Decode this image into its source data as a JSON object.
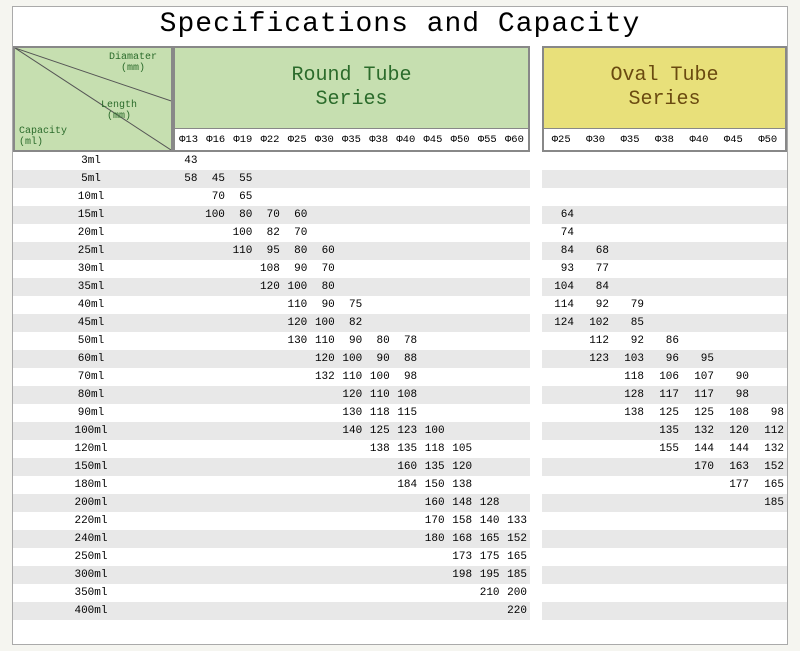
{
  "title": "Specifications and Capacity",
  "corner": {
    "diameter": "Diamater\n(mm)",
    "length": "Length\n(mm)",
    "capacity": "Capacity\n(ml)"
  },
  "round": {
    "title": "Round Tube\nSeries",
    "bg": "#c6dfb0",
    "fg": "#2b6b2b",
    "diameters": [
      "Φ13",
      "Φ16",
      "Φ19",
      "Φ22",
      "Φ25",
      "Φ30",
      "Φ35",
      "Φ38",
      "Φ40",
      "Φ45",
      "Φ50",
      "Φ55",
      "Φ60"
    ]
  },
  "oval": {
    "title": "Oval Tube\nSeries",
    "bg": "#e8e07a",
    "fg": "#6a4a10",
    "diameters": [
      "Φ25",
      "Φ30",
      "Φ35",
      "Φ38",
      "Φ40",
      "Φ45",
      "Φ50"
    ]
  },
  "rows": [
    {
      "cap": "3ml",
      "r": [
        43,
        "",
        "",
        "",
        "",
        "",
        "",
        "",
        "",
        "",
        "",
        "",
        ""
      ],
      "o": [
        "",
        "",
        "",
        "",
        "",
        "",
        ""
      ]
    },
    {
      "cap": "5ml",
      "r": [
        58,
        45,
        55,
        "",
        "",
        "",
        "",
        "",
        "",
        "",
        "",
        "",
        ""
      ],
      "o": [
        "",
        "",
        "",
        "",
        "",
        "",
        ""
      ]
    },
    {
      "cap": "10ml",
      "r": [
        "",
        70,
        65,
        "",
        "",
        "",
        "",
        "",
        "",
        "",
        "",
        "",
        ""
      ],
      "o": [
        "",
        "",
        "",
        "",
        "",
        "",
        ""
      ]
    },
    {
      "cap": "15ml",
      "r": [
        "",
        100,
        80,
        70,
        60,
        "",
        "",
        "",
        "",
        "",
        "",
        "",
        ""
      ],
      "o": [
        64,
        "",
        "",
        "",
        "",
        "",
        ""
      ]
    },
    {
      "cap": "20ml",
      "r": [
        "",
        "",
        100,
        82,
        70,
        "",
        "",
        "",
        "",
        "",
        "",
        "",
        ""
      ],
      "o": [
        74,
        "",
        "",
        "",
        "",
        "",
        ""
      ]
    },
    {
      "cap": "25ml",
      "r": [
        "",
        "",
        110,
        95,
        80,
        60,
        "",
        "",
        "",
        "",
        "",
        "",
        ""
      ],
      "o": [
        84,
        68,
        "",
        "",
        "",
        "",
        ""
      ]
    },
    {
      "cap": "30ml",
      "r": [
        "",
        "",
        "",
        108,
        90,
        70,
        "",
        "",
        "",
        "",
        "",
        "",
        ""
      ],
      "o": [
        93,
        77,
        "",
        "",
        "",
        "",
        ""
      ]
    },
    {
      "cap": "35ml",
      "r": [
        "",
        "",
        "",
        120,
        100,
        80,
        "",
        "",
        "",
        "",
        "",
        "",
        ""
      ],
      "o": [
        104,
        84,
        "",
        "",
        "",
        "",
        ""
      ]
    },
    {
      "cap": "40ml",
      "r": [
        "",
        "",
        "",
        "",
        110,
        90,
        75,
        "",
        "",
        "",
        "",
        "",
        ""
      ],
      "o": [
        114,
        92,
        79,
        "",
        "",
        "",
        ""
      ]
    },
    {
      "cap": "45ml",
      "r": [
        "",
        "",
        "",
        "",
        120,
        100,
        82,
        "",
        "",
        "",
        "",
        "",
        ""
      ],
      "o": [
        124,
        102,
        85,
        "",
        "",
        "",
        ""
      ]
    },
    {
      "cap": "50ml",
      "r": [
        "",
        "",
        "",
        "",
        130,
        110,
        90,
        80,
        78,
        "",
        "",
        "",
        ""
      ],
      "o": [
        "",
        112,
        92,
        86,
        "",
        "",
        ""
      ]
    },
    {
      "cap": "60ml",
      "r": [
        "",
        "",
        "",
        "",
        "",
        120,
        100,
        90,
        88,
        "",
        "",
        "",
        ""
      ],
      "o": [
        "",
        123,
        103,
        96,
        95,
        "",
        ""
      ]
    },
    {
      "cap": "70ml",
      "r": [
        "",
        "",
        "",
        "",
        "",
        132,
        110,
        100,
        98,
        "",
        "",
        "",
        ""
      ],
      "o": [
        "",
        "",
        118,
        106,
        107,
        90,
        ""
      ]
    },
    {
      "cap": "80ml",
      "r": [
        "",
        "",
        "",
        "",
        "",
        "",
        120,
        110,
        108,
        "",
        "",
        "",
        ""
      ],
      "o": [
        "",
        "",
        128,
        117,
        117,
        98,
        ""
      ]
    },
    {
      "cap": "90ml",
      "r": [
        "",
        "",
        "",
        "",
        "",
        "",
        130,
        118,
        115,
        "",
        "",
        "",
        ""
      ],
      "o": [
        "",
        "",
        138,
        125,
        125,
        108,
        98
      ]
    },
    {
      "cap": "100ml",
      "r": [
        "",
        "",
        "",
        "",
        "",
        "",
        140,
        125,
        123,
        100,
        "",
        "",
        ""
      ],
      "o": [
        "",
        "",
        "",
        135,
        132,
        120,
        112
      ]
    },
    {
      "cap": "120ml",
      "r": [
        "",
        "",
        "",
        "",
        "",
        "",
        "",
        138,
        135,
        118,
        105,
        "",
        ""
      ],
      "o": [
        "",
        "",
        "",
        155,
        144,
        144,
        132
      ]
    },
    {
      "cap": "150ml",
      "r": [
        "",
        "",
        "",
        "",
        "",
        "",
        "",
        "",
        160,
        135,
        120,
        "",
        ""
      ],
      "o": [
        "",
        "",
        "",
        "",
        170,
        163,
        152
      ]
    },
    {
      "cap": "180ml",
      "r": [
        "",
        "",
        "",
        "",
        "",
        "",
        "",
        "",
        184,
        150,
        138,
        "",
        ""
      ],
      "o": [
        "",
        "",
        "",
        "",
        "",
        177,
        165
      ]
    },
    {
      "cap": "200ml",
      "r": [
        "",
        "",
        "",
        "",
        "",
        "",
        "",
        "",
        "",
        160,
        148,
        128,
        ""
      ],
      "o": [
        "",
        "",
        "",
        "",
        "",
        "",
        185
      ]
    },
    {
      "cap": "220ml",
      "r": [
        "",
        "",
        "",
        "",
        "",
        "",
        "",
        "",
        "",
        170,
        158,
        140,
        133
      ],
      "o": [
        "",
        "",
        "",
        "",
        "",
        "",
        ""
      ]
    },
    {
      "cap": "240ml",
      "r": [
        "",
        "",
        "",
        "",
        "",
        "",
        "",
        "",
        "",
        180,
        168,
        165,
        152
      ],
      "o": [
        "",
        "",
        "",
        "",
        "",
        "",
        ""
      ]
    },
    {
      "cap": "250ml",
      "r": [
        "",
        "",
        "",
        "",
        "",
        "",
        "",
        "",
        "",
        "",
        173,
        175,
        165
      ],
      "o": [
        "",
        "",
        "",
        "",
        "",
        "",
        ""
      ]
    },
    {
      "cap": "300ml",
      "r": [
        "",
        "",
        "",
        "",
        "",
        "",
        "",
        "",
        "",
        "",
        198,
        195,
        185
      ],
      "o": [
        "",
        "",
        "",
        "",
        "",
        "",
        ""
      ]
    },
    {
      "cap": "350ml",
      "r": [
        "",
        "",
        "",
        "",
        "",
        "",
        "",
        "",
        "",
        "",
        "",
        210,
        200
      ],
      "o": [
        "",
        "",
        "",
        "",
        "",
        "",
        ""
      ]
    },
    {
      "cap": "400ml",
      "r": [
        "",
        "",
        "",
        "",
        "",
        "",
        "",
        "",
        "",
        "",
        "",
        "",
        220
      ],
      "o": [
        "",
        "",
        "",
        "",
        "",
        "",
        ""
      ]
    }
  ]
}
